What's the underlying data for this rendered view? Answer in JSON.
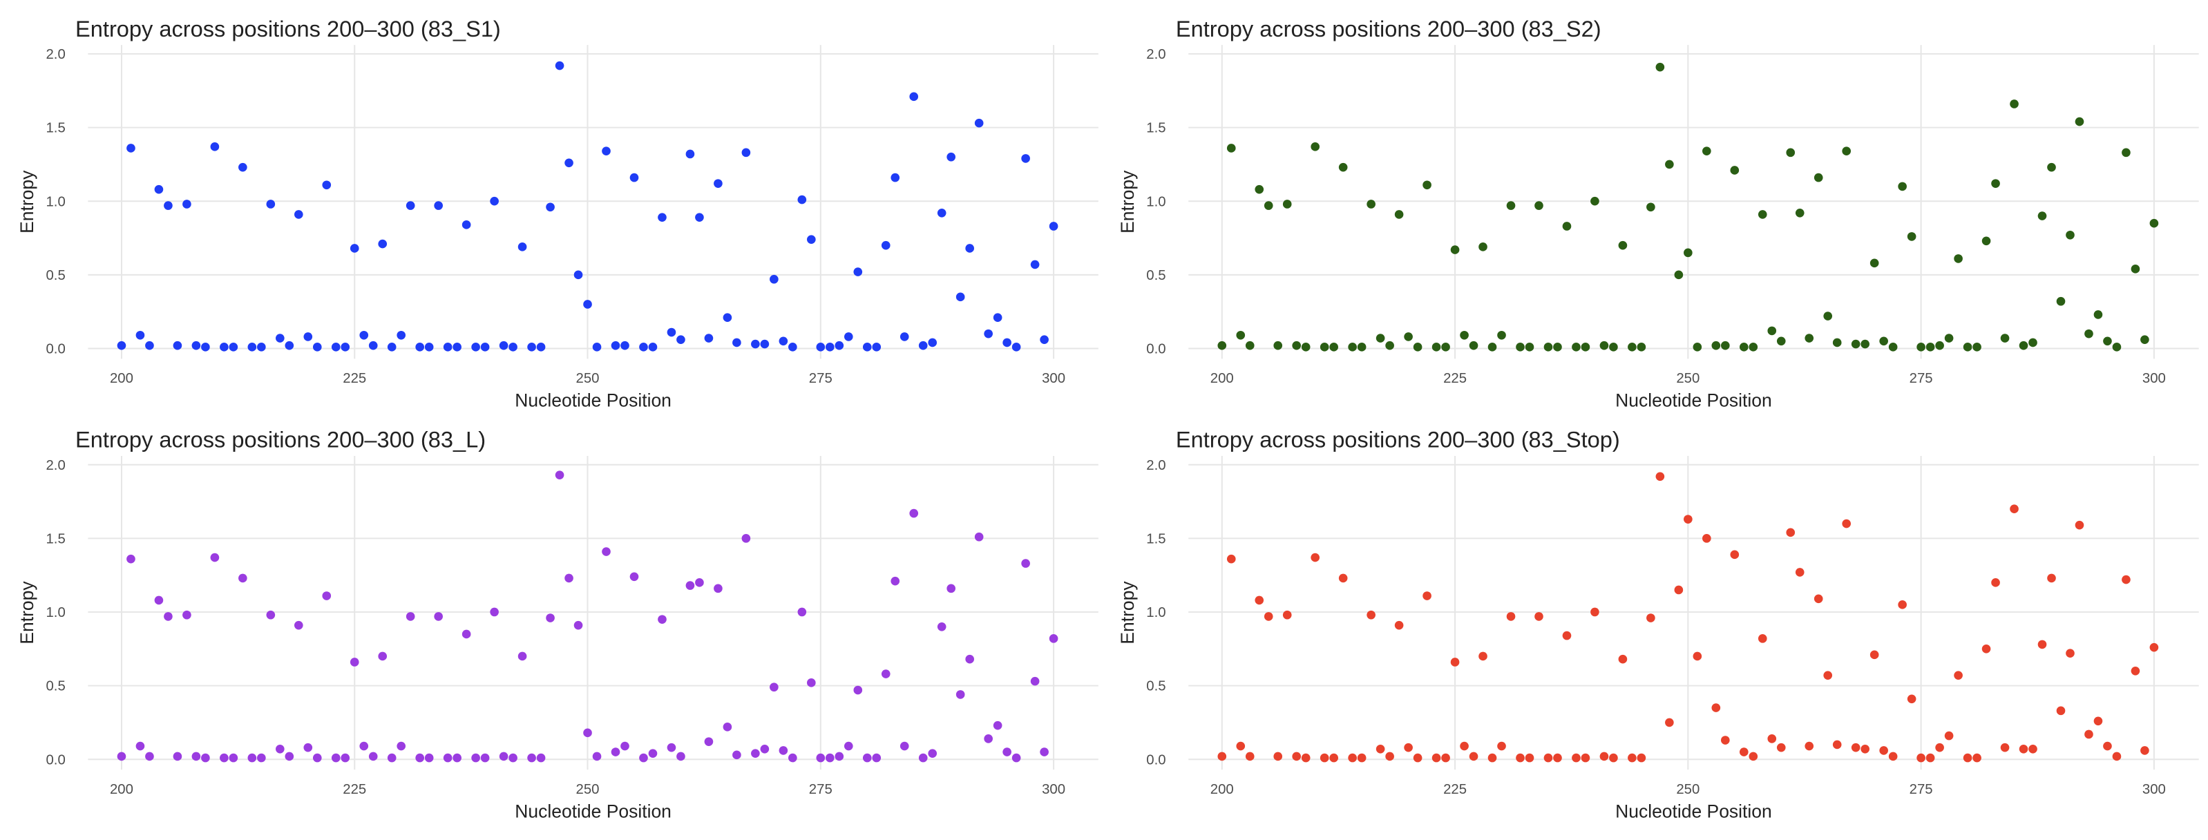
{
  "chart_data": [
    {
      "type": "scatter",
      "title": "Entropy across positions 200–300 (83_S1)",
      "x_label": "Nucleotide Position",
      "y_label": "Entropy",
      "color": "#1f3cf5",
      "grid": true,
      "xlim": [
        196.4,
        304.8
      ],
      "ylim": [
        -0.07,
        2.06
      ],
      "xticks": [
        200,
        225,
        250,
        275,
        300
      ],
      "yticks": [
        {
          "value": 0,
          "label": "0.0"
        },
        {
          "value": 0.5,
          "label": "0.5"
        },
        {
          "value": 1,
          "label": "1.0"
        },
        {
          "value": 1.5,
          "label": "1.5"
        },
        {
          "value": 2,
          "label": "2.0"
        }
      ],
      "x": [
        200,
        201,
        202,
        203,
        204,
        205,
        206,
        207,
        208,
        209,
        210,
        211,
        212,
        213,
        214,
        215,
        216,
        217,
        218,
        219,
        220,
        221,
        222,
        223,
        224,
        225,
        226,
        227,
        228,
        229,
        230,
        231,
        232,
        233,
        234,
        235,
        236,
        237,
        238,
        239,
        240,
        241,
        242,
        243,
        244,
        245,
        246,
        247,
        248,
        249,
        250,
        251,
        252,
        253,
        254,
        255,
        256,
        257,
        258,
        259,
        260,
        261,
        262,
        263,
        264,
        265,
        266,
        267,
        268,
        269,
        270,
        271,
        272,
        273,
        274,
        275,
        276,
        277,
        278,
        279,
        280,
        281,
        282,
        283,
        284,
        285,
        286,
        287,
        288,
        289,
        290,
        291,
        292,
        293,
        294,
        295,
        296,
        297,
        298,
        299,
        300
      ],
      "values": [
        0.02,
        1.36,
        0.09,
        0.02,
        1.08,
        0.97,
        0.02,
        0.98,
        0.02,
        0.01,
        1.37,
        0.01,
        0.01,
        1.23,
        0.01,
        0.01,
        0.98,
        0.07,
        0.02,
        0.91,
        0.08,
        0.01,
        1.11,
        0.01,
        0.01,
        0.68,
        0.09,
        0.02,
        0.71,
        0.01,
        0.09,
        0.97,
        0.01,
        0.01,
        0.97,
        0.01,
        0.01,
        0.84,
        0.01,
        0.01,
        1.0,
        0.02,
        0.01,
        0.69,
        0.01,
        0.01,
        0.96,
        1.92,
        1.26,
        0.5,
        0.3,
        0.01,
        1.34,
        0.02,
        0.02,
        1.16,
        0.01,
        0.01,
        0.89,
        0.11,
        0.06,
        1.32,
        0.89,
        0.07,
        1.12,
        0.21,
        0.04,
        1.33,
        0.03,
        0.03,
        0.47,
        0.05,
        0.01,
        1.01,
        0.74,
        0.01,
        0.01,
        0.02,
        0.08,
        0.52,
        0.01,
        0.01,
        0.7,
        1.16,
        0.08,
        1.71,
        0.02,
        0.04,
        0.92,
        1.3,
        0.35,
        0.68,
        1.53,
        0.1,
        0.21,
        0.04,
        0.01,
        1.29,
        0.57,
        0.06,
        0.83
      ]
    },
    {
      "type": "scatter",
      "title": "Entropy across positions 200–300 (83_S2)",
      "x_label": "Nucleotide Position",
      "y_label": "Entropy",
      "color": "#2a5e14",
      "grid": true,
      "xlim": [
        196.4,
        304.8
      ],
      "ylim": [
        -0.07,
        2.06
      ],
      "xticks": [
        200,
        225,
        250,
        275,
        300
      ],
      "yticks": [
        {
          "value": 0,
          "label": "0.0"
        },
        {
          "value": 0.5,
          "label": "0.5"
        },
        {
          "value": 1,
          "label": "1.0"
        },
        {
          "value": 1.5,
          "label": "1.5"
        },
        {
          "value": 2,
          "label": "2.0"
        }
      ],
      "x": [
        200,
        201,
        202,
        203,
        204,
        205,
        206,
        207,
        208,
        209,
        210,
        211,
        212,
        213,
        214,
        215,
        216,
        217,
        218,
        219,
        220,
        221,
        222,
        223,
        224,
        225,
        226,
        227,
        228,
        229,
        230,
        231,
        232,
        233,
        234,
        235,
        236,
        237,
        238,
        239,
        240,
        241,
        242,
        243,
        244,
        245,
        246,
        247,
        248,
        249,
        250,
        251,
        252,
        253,
        254,
        255,
        256,
        257,
        258,
        259,
        260,
        261,
        262,
        263,
        264,
        265,
        266,
        267,
        268,
        269,
        270,
        271,
        272,
        273,
        274,
        275,
        276,
        277,
        278,
        279,
        280,
        281,
        282,
        283,
        284,
        285,
        286,
        287,
        288,
        289,
        290,
        291,
        292,
        293,
        294,
        295,
        296,
        297,
        298,
        299,
        300
      ],
      "values": [
        0.02,
        1.36,
        0.09,
        0.02,
        1.08,
        0.97,
        0.02,
        0.98,
        0.02,
        0.01,
        1.37,
        0.01,
        0.01,
        1.23,
        0.01,
        0.01,
        0.98,
        0.07,
        0.02,
        0.91,
        0.08,
        0.01,
        1.11,
        0.01,
        0.01,
        0.67,
        0.09,
        0.02,
        0.69,
        0.01,
        0.09,
        0.97,
        0.01,
        0.01,
        0.97,
        0.01,
        0.01,
        0.83,
        0.01,
        0.01,
        1.0,
        0.02,
        0.01,
        0.7,
        0.01,
        0.01,
        0.96,
        1.91,
        1.25,
        0.5,
        0.65,
        0.01,
        1.34,
        0.02,
        0.02,
        1.21,
        0.01,
        0.01,
        0.91,
        0.12,
        0.05,
        1.33,
        0.92,
        0.07,
        1.16,
        0.22,
        0.04,
        1.34,
        0.03,
        0.03,
        0.58,
        0.05,
        0.01,
        1.1,
        0.76,
        0.01,
        0.01,
        0.02,
        0.07,
        0.61,
        0.01,
        0.01,
        0.73,
        1.12,
        0.07,
        1.66,
        0.02,
        0.04,
        0.9,
        1.23,
        0.32,
        0.77,
        1.54,
        0.1,
        0.23,
        0.05,
        0.01,
        1.33,
        0.54,
        0.06,
        0.85
      ]
    },
    {
      "type": "scatter",
      "title": "Entropy across positions 200–300 (83_L)",
      "x_label": "Nucleotide Position",
      "y_label": "Entropy",
      "color": "#9a3ce0",
      "grid": true,
      "xlim": [
        196.4,
        304.8
      ],
      "ylim": [
        -0.07,
        2.06
      ],
      "xticks": [
        200,
        225,
        250,
        275,
        300
      ],
      "yticks": [
        {
          "value": 0,
          "label": "0.0"
        },
        {
          "value": 0.5,
          "label": "0.5"
        },
        {
          "value": 1,
          "label": "1.0"
        },
        {
          "value": 1.5,
          "label": "1.5"
        },
        {
          "value": 2,
          "label": "2.0"
        }
      ],
      "x": [
        200,
        201,
        202,
        203,
        204,
        205,
        206,
        207,
        208,
        209,
        210,
        211,
        212,
        213,
        214,
        215,
        216,
        217,
        218,
        219,
        220,
        221,
        222,
        223,
        224,
        225,
        226,
        227,
        228,
        229,
        230,
        231,
        232,
        233,
        234,
        235,
        236,
        237,
        238,
        239,
        240,
        241,
        242,
        243,
        244,
        245,
        246,
        247,
        248,
        249,
        250,
        251,
        252,
        253,
        254,
        255,
        256,
        257,
        258,
        259,
        260,
        261,
        262,
        263,
        264,
        265,
        266,
        267,
        268,
        269,
        270,
        271,
        272,
        273,
        274,
        275,
        276,
        277,
        278,
        279,
        280,
        281,
        282,
        283,
        284,
        285,
        286,
        287,
        288,
        289,
        290,
        291,
        292,
        293,
        294,
        295,
        296,
        297,
        298,
        299,
        300
      ],
      "values": [
        0.02,
        1.36,
        0.09,
        0.02,
        1.08,
        0.97,
        0.02,
        0.98,
        0.02,
        0.01,
        1.37,
        0.01,
        0.01,
        1.23,
        0.01,
        0.01,
        0.98,
        0.07,
        0.02,
        0.91,
        0.08,
        0.01,
        1.11,
        0.01,
        0.01,
        0.66,
        0.09,
        0.02,
        0.7,
        0.01,
        0.09,
        0.97,
        0.01,
        0.01,
        0.97,
        0.01,
        0.01,
        0.85,
        0.01,
        0.01,
        1.0,
        0.02,
        0.01,
        0.7,
        0.01,
        0.01,
        0.96,
        1.93,
        1.23,
        0.91,
        0.18,
        0.02,
        1.41,
        0.05,
        0.09,
        1.24,
        0.01,
        0.04,
        0.95,
        0.08,
        0.02,
        1.18,
        1.2,
        0.12,
        1.16,
        0.22,
        0.03,
        1.5,
        0.04,
        0.07,
        0.49,
        0.06,
        0.01,
        1.0,
        0.52,
        0.01,
        0.01,
        0.02,
        0.09,
        0.47,
        0.01,
        0.01,
        0.58,
        1.21,
        0.09,
        1.67,
        0.01,
        0.04,
        0.9,
        1.16,
        0.44,
        0.68,
        1.51,
        0.14,
        0.23,
        0.05,
        0.01,
        1.33,
        0.53,
        0.05,
        0.82
      ]
    },
    {
      "type": "scatter",
      "title": "Entropy across positions 200–300 (83_Stop)",
      "x_label": "Nucleotide Position",
      "y_label": "Entropy",
      "color": "#e8412c",
      "grid": true,
      "xlim": [
        196.4,
        304.8
      ],
      "ylim": [
        -0.07,
        2.06
      ],
      "xticks": [
        200,
        225,
        250,
        275,
        300
      ],
      "yticks": [
        {
          "value": 0,
          "label": "0.0"
        },
        {
          "value": 0.5,
          "label": "0.5"
        },
        {
          "value": 1,
          "label": "1.0"
        },
        {
          "value": 1.5,
          "label": "1.5"
        },
        {
          "value": 2,
          "label": "2.0"
        }
      ],
      "x": [
        200,
        201,
        202,
        203,
        204,
        205,
        206,
        207,
        208,
        209,
        210,
        211,
        212,
        213,
        214,
        215,
        216,
        217,
        218,
        219,
        220,
        221,
        222,
        223,
        224,
        225,
        226,
        227,
        228,
        229,
        230,
        231,
        232,
        233,
        234,
        235,
        236,
        237,
        238,
        239,
        240,
        241,
        242,
        243,
        244,
        245,
        246,
        247,
        248,
        249,
        250,
        251,
        252,
        253,
        254,
        255,
        256,
        257,
        258,
        259,
        260,
        261,
        262,
        263,
        264,
        265,
        266,
        267,
        268,
        269,
        270,
        271,
        272,
        273,
        274,
        275,
        276,
        277,
        278,
        279,
        280,
        281,
        282,
        283,
        284,
        285,
        286,
        287,
        288,
        289,
        290,
        291,
        292,
        293,
        294,
        295,
        296,
        297,
        298,
        299,
        300
      ],
      "values": [
        0.02,
        1.36,
        0.09,
        0.02,
        1.08,
        0.97,
        0.02,
        0.98,
        0.02,
        0.01,
        1.37,
        0.01,
        0.01,
        1.23,
        0.01,
        0.01,
        0.98,
        0.07,
        0.02,
        0.91,
        0.08,
        0.01,
        1.11,
        0.01,
        0.01,
        0.66,
        0.09,
        0.02,
        0.7,
        0.01,
        0.09,
        0.97,
        0.01,
        0.01,
        0.97,
        0.01,
        0.01,
        0.84,
        0.01,
        0.01,
        1.0,
        0.02,
        0.01,
        0.68,
        0.01,
        0.01,
        0.96,
        1.92,
        0.25,
        1.15,
        1.63,
        0.7,
        1.5,
        0.35,
        0.13,
        1.39,
        0.05,
        0.02,
        0.82,
        0.14,
        0.08,
        1.54,
        1.27,
        0.09,
        1.09,
        0.57,
        0.1,
        1.6,
        0.08,
        0.07,
        0.71,
        0.06,
        0.02,
        1.05,
        0.41,
        0.01,
        0.01,
        0.08,
        0.16,
        0.57,
        0.01,
        0.01,
        0.75,
        1.2,
        0.08,
        1.7,
        0.07,
        0.07,
        0.78,
        1.23,
        0.33,
        0.72,
        1.59,
        0.17,
        0.26,
        0.09,
        0.02,
        1.22,
        0.6,
        0.06,
        0.76
      ]
    }
  ]
}
